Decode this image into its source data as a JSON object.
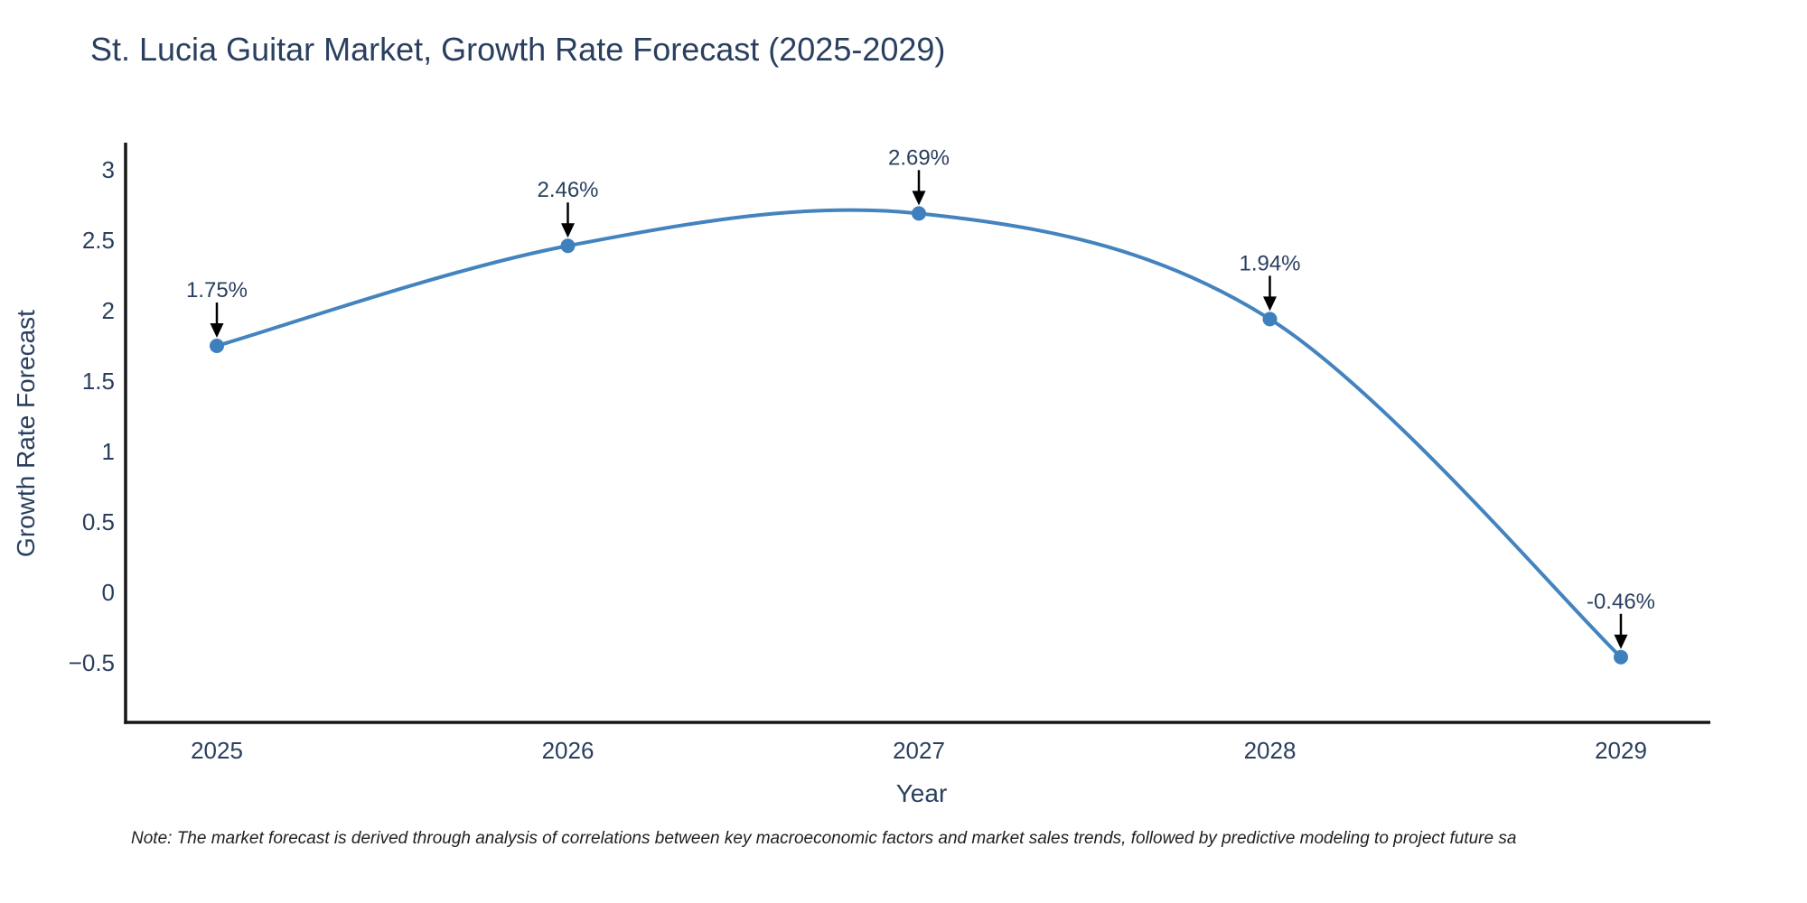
{
  "page": {
    "background": "#ffffff"
  },
  "note": {
    "text": "Note: The market forecast is derived through analysis of correlations between key macroeconomic factors and market sales trends, followed by predictive modeling to project future sa"
  },
  "chart_data": {
    "type": "line",
    "title": "St. Lucia Guitar Market, Growth Rate Forecast (2025-2029)",
    "xlabel": "Year",
    "ylabel": "Growth Rate Forecast",
    "x": [
      2025,
      2026,
      2027,
      2028,
      2029
    ],
    "x_labels": [
      "2025",
      "2026",
      "2027",
      "2028",
      "2029"
    ],
    "series": [
      {
        "name": "Growth Rate Forecast",
        "values": [
          1.75,
          2.46,
          2.69,
          1.94,
          -0.46
        ]
      }
    ],
    "point_labels": [
      "1.75%",
      "2.46%",
      "2.69%",
      "1.94%",
      "-0.46%"
    ],
    "yticks": {
      "values": [
        3,
        2.5,
        2,
        1.5,
        1,
        0.5,
        0,
        -0.5
      ],
      "labels": [
        "3",
        "2.5",
        "2",
        "1.5",
        "1",
        "0.5",
        "0",
        "−0.5"
      ]
    },
    "ylim": [
      -0.96,
      3.15
    ],
    "line_shape": "spline",
    "grid": false,
    "legend": "none",
    "annotation_style": "label-above-with-down-arrow",
    "colors": {
      "line": "#4383be",
      "marker": "#3d80bd",
      "axis_line": "#161616",
      "text": "#2a3f5f",
      "annotation_arrow": "#000000",
      "note_text": "#1f1f1f"
    }
  }
}
